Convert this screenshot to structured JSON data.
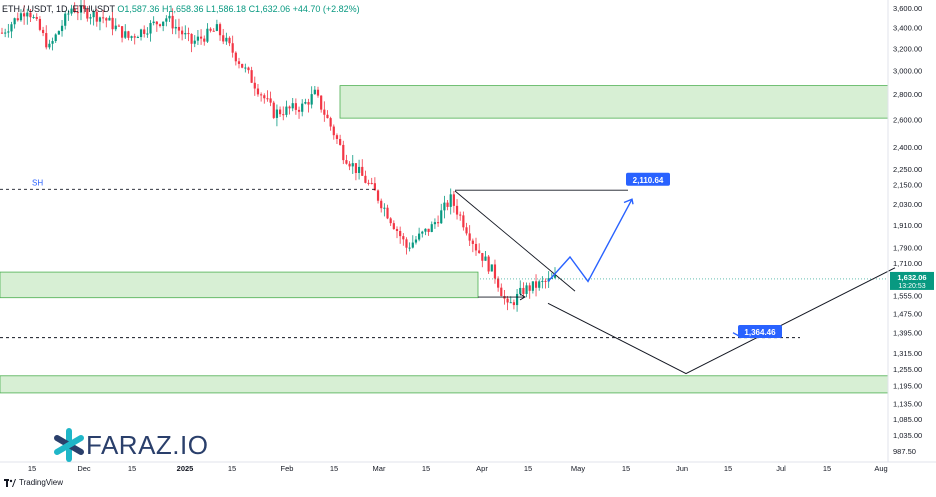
{
  "legend": {
    "symbol": "ETH / USDT, 1D, ETHUSDT",
    "open": "O1,587.36",
    "high": "H1,658.36",
    "low": "L1,586.18",
    "close": "C1,632.06",
    "change": "+44.70 (+2.82%)"
  },
  "brand": {
    "watermark": "FARAZ.IO",
    "watermark_icon": "faraz-star-icon",
    "platform": "TradingView",
    "platform_icon": "tradingview-logo-icon"
  },
  "colors": {
    "up": "#089981",
    "down": "#f23645",
    "zone_fill": "#b7e1b0",
    "zone_stroke": "#4caf50",
    "projection_blue": "#2962ff",
    "price_tag": "#089981",
    "label_bg": "#2962ff"
  },
  "chart_data": {
    "type": "candlestick",
    "y_scale": "log",
    "ylim": [
      950,
      3650
    ],
    "y_ticks": [
      "3,600.00",
      "3,400.00",
      "3,200.00",
      "3,000.00",
      "2,800.00",
      "2,600.00",
      "2,400.00",
      "2,250.00",
      "2,150.00",
      "2,030.00",
      "1,910.00",
      "1,790.00",
      "1,710.00",
      "1,632.06",
      "1,555.00",
      "1,475.00",
      "1,395.00",
      "1,315.00",
      "1,255.00",
      "1,195.00",
      "1,135.00",
      "1,085.00",
      "1,035.00",
      "987.50"
    ],
    "x_ticks": [
      "15",
      "Dec",
      "15",
      "2025",
      "15",
      "Feb",
      "15",
      "Mar",
      "15",
      "Apr",
      "15",
      "May",
      "15",
      "Jun",
      "15",
      "Jul",
      "15",
      "Aug"
    ],
    "current_price": "1,632.06",
    "countdown": "13:20:53",
    "annotations": {
      "sh_label": "SH",
      "sh_level": 2120,
      "target_high": "2,110.64",
      "target_low": "1,364.46",
      "dashed_low_level": 1375
    },
    "zones": [
      {
        "from": 2610,
        "to": 2870
      },
      {
        "from": 1545,
        "to": 1665
      },
      {
        "from": 1170,
        "to": 1230
      }
    ]
  }
}
